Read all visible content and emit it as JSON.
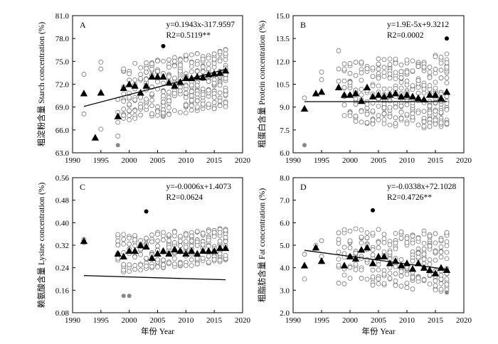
{
  "chart_data": [
    {
      "type": "scatter",
      "panel_letter": "A",
      "ylabel": "粗淀粉含量 Starch concentration (%)",
      "xlabel": "",
      "xlim": [
        1990,
        2020
      ],
      "ylim": [
        63.0,
        81.0
      ],
      "x_ticks": [
        "1990",
        "1995",
        "2000",
        "2005",
        "2010",
        "2015",
        "2020"
      ],
      "y_ticks": [
        "63.0",
        "66.0",
        "69.0",
        "72.0",
        "75.0",
        "78.0",
        "81.0"
      ],
      "equation": "y=0.1943x-317.9597",
      "r2_text": "R2=0.5119**",
      "trend_line": {
        "slope": 0.1943,
        "intercept": -317.9597,
        "x_range": [
          1992,
          2017
        ]
      },
      "means": {
        "x": [
          1992,
          1994,
          1995,
          1998,
          1999,
          2000,
          2001,
          2002,
          2003,
          2004,
          2005,
          2006,
          2007,
          2008,
          2009,
          2010,
          2011,
          2012,
          2013,
          2014,
          2015,
          2016,
          2017
        ],
        "y": [
          70.8,
          65.0,
          70.9,
          67.8,
          71.5,
          72.0,
          71.8,
          70.9,
          71.8,
          73.0,
          73.0,
          73.0,
          72.2,
          71.8,
          72.3,
          72.8,
          72.8,
          73.0,
          72.9,
          73.3,
          73.4,
          73.5,
          73.8
        ]
      },
      "outliers_black": {
        "x": [
          2006
        ],
        "y": [
          77.0
        ]
      },
      "outliers_grey": {
        "x": [
          1998
        ],
        "y": [
          64.0
        ]
      },
      "samples": {
        "x": [
          1992,
          1992,
          1995,
          1995,
          1995,
          1998,
          1998,
          1998,
          1998
        ],
        "y": [
          73.3,
          68.1,
          74.9,
          74.0,
          66.1,
          70.0,
          65.2,
          67.0,
          68.3
        ]
      },
      "dense_spread": {
        "years": [
          1999,
          2017
        ],
        "low": [
          67.0,
          69.0
        ],
        "high": [
          74.5,
          76.8
        ],
        "n": 20
      }
    },
    {
      "type": "scatter",
      "panel_letter": "B",
      "ylabel": "粗蛋白含量 Protein concentration (%)",
      "xlabel": "",
      "xlim": [
        1990,
        2020
      ],
      "ylim": [
        6.0,
        15.0
      ],
      "x_ticks": [
        "1990",
        "1995",
        "2000",
        "2005",
        "2010",
        "2015",
        "2020"
      ],
      "y_ticks": [
        "6.0",
        "7.5",
        "9.0",
        "10.5",
        "12.0",
        "13.5",
        "15.0"
      ],
      "equation": "y=1.9E-5x+9.3212",
      "r2_text": "R2=0.0002",
      "trend_line": {
        "slope": 1.9e-05,
        "intercept": 9.3212,
        "x_range": [
          1992,
          2017
        ]
      },
      "means": {
        "x": [
          1992,
          1994,
          1995,
          1998,
          1999,
          2000,
          2001,
          2002,
          2003,
          2004,
          2005,
          2006,
          2007,
          2008,
          2009,
          2010,
          2011,
          2012,
          2013,
          2014,
          2015,
          2016,
          2017
        ],
        "y": [
          8.9,
          9.9,
          10.0,
          10.3,
          9.8,
          9.8,
          9.9,
          9.4,
          10.3,
          9.7,
          9.8,
          9.7,
          9.8,
          9.9,
          9.7,
          9.8,
          9.7,
          9.6,
          9.5,
          9.8,
          9.8,
          9.6,
          10.0
        ]
      },
      "outliers_black": {
        "x": [
          2017
        ],
        "y": [
          13.5
        ]
      },
      "outliers_grey": {
        "x": [
          1992
        ],
        "y": [
          6.5
        ]
      },
      "samples": {
        "x": [
          1992,
          1995,
          1995,
          1998,
          1998,
          1998
        ],
        "y": [
          9.6,
          11.3,
          10.8,
          12.7,
          11.5,
          10.7
        ]
      },
      "dense_spread": {
        "years": [
          1999,
          2017
        ],
        "low": [
          8.0,
          7.5
        ],
        "high": [
          12.0,
          12.5
        ],
        "n": 20
      }
    },
    {
      "type": "scatter",
      "panel_letter": "C",
      "ylabel": "赖氨酸含量 Lysine concentration (%)",
      "xlabel": "年份 Year",
      "xlim": [
        1990,
        2020
      ],
      "ylim": [
        0.08,
        0.56
      ],
      "x_ticks": [
        "1990",
        "1995",
        "2000",
        "2005",
        "2010",
        "2015",
        "2020"
      ],
      "y_ticks": [
        "0.08",
        "0.16",
        "0.24",
        "0.32",
        "0.40",
        "0.48",
        "0.56"
      ],
      "equation": "y=-0.0006x+1.4073",
      "r2_text": "R2=0.0624",
      "trend_line": {
        "slope": -0.0006,
        "intercept": 1.4073,
        "x_range": [
          1992,
          2017
        ]
      },
      "means": {
        "x": [
          1992,
          1998,
          1999,
          2000,
          2001,
          2002,
          2003,
          2004,
          2005,
          2006,
          2007,
          2008,
          2009,
          2010,
          2011,
          2012,
          2013,
          2014,
          2015,
          2016,
          2017
        ],
        "y": [
          0.335,
          0.29,
          0.28,
          0.3,
          0.3,
          0.32,
          0.315,
          0.275,
          0.29,
          0.3,
          0.29,
          0.305,
          0.3,
          0.29,
          0.3,
          0.29,
          0.3,
          0.3,
          0.3,
          0.31,
          0.31
        ]
      },
      "outliers_black": {
        "x": [
          2003
        ],
        "y": [
          0.44
        ]
      },
      "outliers_grey": {
        "x": [
          1999,
          2000
        ],
        "y": [
          0.14,
          0.14
        ]
      },
      "samples": {
        "x": [
          1992,
          1992
        ],
        "y": [
          0.34,
          0.33
        ]
      },
      "dense_spread": {
        "years": [
          1998,
          2017
        ],
        "low": [
          0.22,
          0.26
        ],
        "high": [
          0.36,
          0.38
        ],
        "n": 14
      }
    },
    {
      "type": "scatter",
      "panel_letter": "D",
      "ylabel": "粗脂肪含量 Fat concentration (%)",
      "xlabel": "年份 Year",
      "xlim": [
        1990,
        2020
      ],
      "ylim": [
        2.0,
        8.0
      ],
      "x_ticks": [
        "1990",
        "1995",
        "2000",
        "2005",
        "2010",
        "2015",
        "2020"
      ],
      "y_ticks": [
        "2.0",
        "3.0",
        "4.0",
        "5.0",
        "6.0",
        "7.0",
        "8.0"
      ],
      "equation": "y=-0.0338x+72.1028",
      "r2_text": "R2=0.4726**",
      "trend_line": {
        "slope": -0.0338,
        "intercept": 72.1028,
        "x_range": [
          1992,
          2017
        ]
      },
      "means": {
        "x": [
          1992,
          1994,
          1995,
          1999,
          2000,
          2001,
          2002,
          2003,
          2004,
          2005,
          2006,
          2007,
          2008,
          2009,
          2010,
          2011,
          2012,
          2013,
          2014,
          2015,
          2016,
          2017
        ],
        "y": [
          4.1,
          4.9,
          4.3,
          4.1,
          4.5,
          4.4,
          4.8,
          4.9,
          4.2,
          4.5,
          4.5,
          4.2,
          4.3,
          4.1,
          4.2,
          3.95,
          4.2,
          4.0,
          3.9,
          3.75,
          4.0,
          3.9
        ]
      },
      "outliers_black": {
        "x": [
          2004
        ],
        "y": [
          6.55
        ]
      },
      "outliers_grey": {
        "x": [
          2017
        ],
        "y": [
          2.9
        ]
      },
      "samples": {
        "x": [
          1992,
          1992,
          1994,
          1995,
          1995
        ],
        "y": [
          4.6,
          3.5,
          5.0,
          4.5,
          5.2
        ]
      },
      "dense_spread": {
        "years": [
          1998,
          2017
        ],
        "low": [
          3.3,
          2.9
        ],
        "high": [
          5.8,
          5.6
        ],
        "n": 14
      }
    }
  ]
}
